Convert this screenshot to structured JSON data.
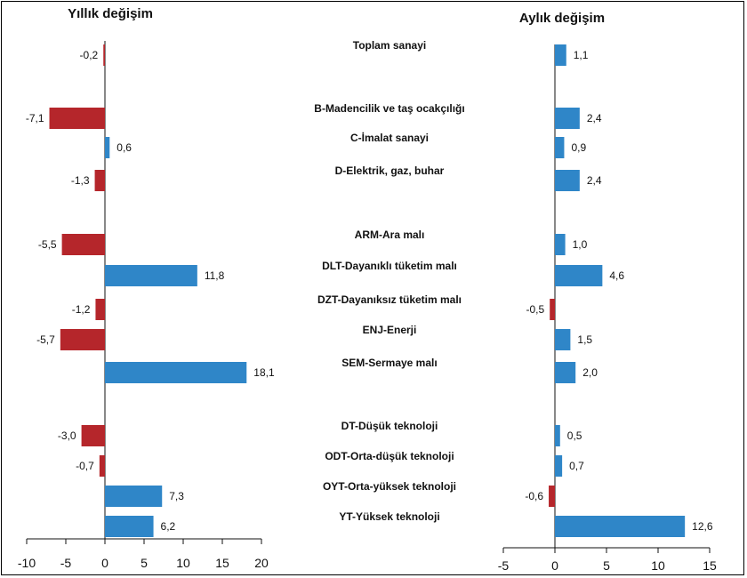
{
  "chart_data": {
    "type": "bar",
    "orientation": "horizontal",
    "categories": [
      "Toplam sanayi",
      "B-Madencilik ve taş ocakçılığı",
      "C-İmalat sanayi",
      "D-Elektrik, gaz, buhar",
      "ARM-Ara malı",
      "DLT-Dayanıklı tüketim malı",
      "DZT-Dayanıksız tüketim malı",
      "ENJ-Enerji",
      "SEM-Sermaye malı",
      "DT-Düşük teknoloji",
      "ODT-Orta-düşük teknoloji",
      "OYT-Orta-yüksek teknoloji",
      "YT-Yüksek teknoloji"
    ],
    "panels": [
      {
        "title": "Yıllık değişim",
        "values": [
          -0.2,
          -7.1,
          0.6,
          -1.3,
          -5.5,
          11.8,
          -1.2,
          -5.7,
          18.1,
          -3.0,
          -0.7,
          7.3,
          6.2
        ],
        "value_labels": [
          "-0,2",
          "-7,1",
          "0,6",
          "-1,3",
          "-5,5",
          "11,8",
          "-1,2",
          "-5,7",
          "18,1",
          "-3,0",
          "-0,7",
          "7,3",
          "6,2"
        ],
        "xlim": [
          -10,
          20
        ],
        "ticks": [
          "-10",
          "-5",
          "0",
          "5",
          "10",
          "15",
          "20"
        ],
        "tick_values": [
          -10,
          -5,
          0,
          5,
          10,
          15,
          20
        ]
      },
      {
        "title": "Aylık değişim",
        "values": [
          1.1,
          2.4,
          0.9,
          2.4,
          1.0,
          4.6,
          -0.5,
          1.5,
          2.0,
          0.5,
          0.7,
          -0.6,
          12.6
        ],
        "value_labels": [
          "1,1",
          "2,4",
          "0,9",
          "2,4",
          "1,0",
          "4,6",
          "-0,5",
          "1,5",
          "2,0",
          "0,5",
          "0,7",
          "-0,6",
          "12,6"
        ],
        "xlim": [
          -5,
          15
        ],
        "ticks": [
          "-5",
          "0",
          "5",
          "10",
          "15"
        ],
        "tick_values": [
          -5,
          0,
          5,
          10,
          15
        ]
      }
    ],
    "colors": {
      "positive": "#2f86c8",
      "negative": "#b5262b"
    },
    "grid": false,
    "legend": "none"
  }
}
